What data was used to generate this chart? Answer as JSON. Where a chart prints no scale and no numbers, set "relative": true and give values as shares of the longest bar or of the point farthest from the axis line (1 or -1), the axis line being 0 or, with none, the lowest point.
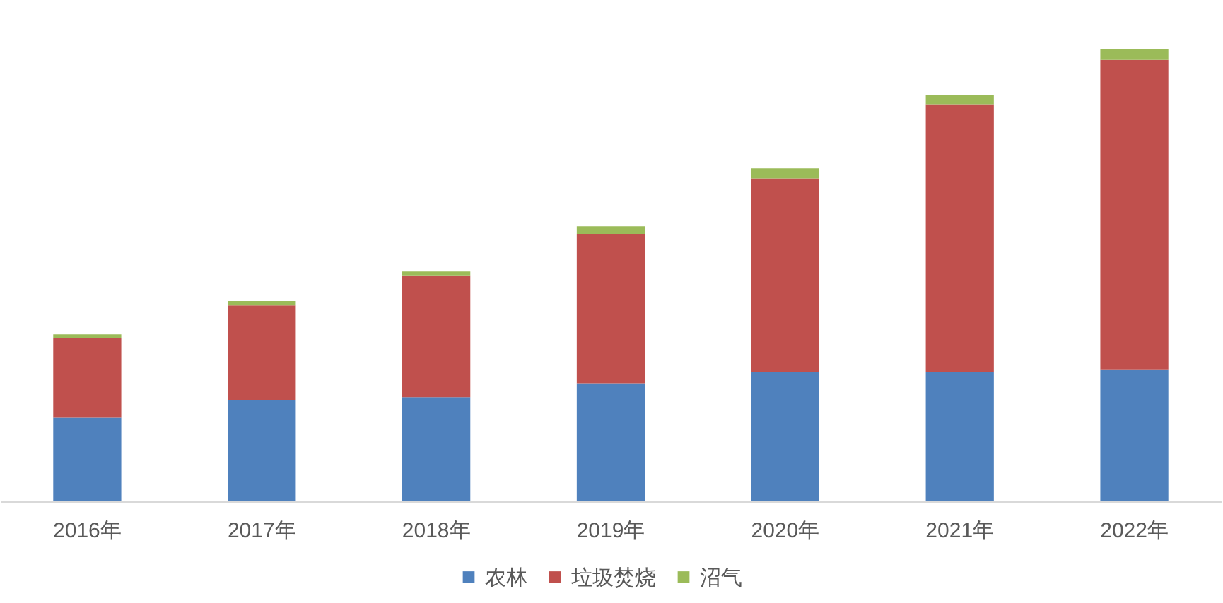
{
  "chart_data": {
    "type": "bar",
    "stacked": true,
    "relative": true,
    "legend": "bottom",
    "categories": [
      "2016年",
      "2017年",
      "2018年",
      "2019年",
      "2020年",
      "2021年",
      "2022年"
    ],
    "series": [
      {
        "name": "农林",
        "color": "#4f81bd",
        "values": [
          0.185,
          0.224,
          0.231,
          0.26,
          0.286,
          0.286,
          0.291
        ]
      },
      {
        "name": "垃圾焚烧",
        "color": "#c0504d",
        "values": [
          0.176,
          0.21,
          0.268,
          0.332,
          0.429,
          0.593,
          0.686
        ]
      },
      {
        "name": "沼气",
        "color": "#9bbb59",
        "values": [
          0.009,
          0.009,
          0.01,
          0.017,
          0.022,
          0.021,
          0.023
        ]
      }
    ]
  }
}
